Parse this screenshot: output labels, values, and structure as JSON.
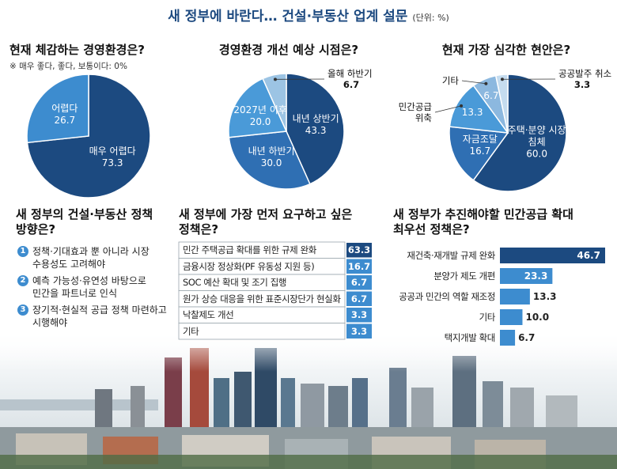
{
  "title": "새 정부에 바란다… 건설·부동산 업계 설문",
  "unit": "(단위: %)",
  "chart_data": [
    {
      "type": "pie",
      "title": "현재 체감하는 경영환경은?",
      "note": "※ 매우 좋다, 좋다, 보통이다: 0%",
      "categories": [
        "매우 어렵다",
        "어렵다"
      ],
      "values": [
        73.3,
        26.7
      ],
      "colors": [
        "#1c4a80",
        "#3d8ccf"
      ]
    },
    {
      "type": "pie",
      "title": "경영환경 개선 예상 시점은?",
      "categories": [
        "내년 상반기",
        "내년 하반기",
        "2027년 이후",
        "올해 하반기"
      ],
      "values": [
        43.3,
        30.0,
        20.0,
        6.7
      ],
      "value_labels": [
        "43.3",
        "30.0",
        "20.0",
        "6.7"
      ],
      "colors": [
        "#1c4a80",
        "#2f6fb3",
        "#4a9ad8",
        "#9cc4e4"
      ]
    },
    {
      "type": "pie",
      "title": "현재 가장 심각한 현안은?",
      "categories": [
        "주택·분양 시장 침체",
        "자금조달",
        "민간공급 위축",
        "기타",
        "공공발주 취소"
      ],
      "values": [
        60.0,
        16.7,
        13.3,
        6.7,
        3.3
      ],
      "value_labels": [
        "60.0",
        "16.7",
        "13.3",
        "6.7",
        "3.3"
      ],
      "colors": [
        "#1c4a80",
        "#2f6fb3",
        "#4a9ad8",
        "#8cb8df",
        "#c5dcef"
      ]
    },
    {
      "type": "table",
      "title": "새 정부에 가장 먼저 요구하고 싶은 정책은?",
      "categories": [
        "민간 주택공급 확대를 위한 규제 완화",
        "금융시장 정상화(PF 유동성 지원 등)",
        "SOC 예산 확대 및 조기 집행",
        "원가 상승 대응을 위한 표준시장단가 현실화",
        "낙찰제도 개선",
        "기타"
      ],
      "values": [
        63.3,
        16.7,
        6.7,
        6.7,
        3.3,
        3.3
      ],
      "colors": [
        "#1c4a80",
        "#3d8ccf",
        "#3d8ccf",
        "#3d8ccf",
        "#3d8ccf",
        "#3d8ccf"
      ]
    },
    {
      "type": "hbar",
      "title": "새 정부가 추진해야할 민간공급 확대 최우선 정책은?",
      "categories": [
        "재건축·재개발 규제 완화",
        "분양가 제도 개편",
        "공공과 민간의 역할 재조정",
        "기타",
        "택지개발 확대"
      ],
      "values": [
        46.7,
        23.3,
        13.3,
        10.0,
        6.7
      ],
      "value_labels": [
        "46.7",
        "23.3",
        "13.3",
        "10.0",
        "6.7"
      ],
      "colors": [
        "#1c4a80",
        "#3d8ccf",
        "#3d8ccf",
        "#3d8ccf",
        "#3d8ccf"
      ]
    }
  ],
  "policy_panel": {
    "title": "새 정부의 건설·부동산 정책 방향은?",
    "items": [
      {
        "number": "1",
        "text": "정책·기대효과 뿐 아니라 시장 수용성도 고려해야"
      },
      {
        "number": "2",
        "text": "예측 가능성·유연성 바탕으로 민간을 파트너로 인식"
      },
      {
        "number": "3",
        "text": "장기적·현실적 공급 정책 마련하고 시행해야"
      }
    ]
  }
}
